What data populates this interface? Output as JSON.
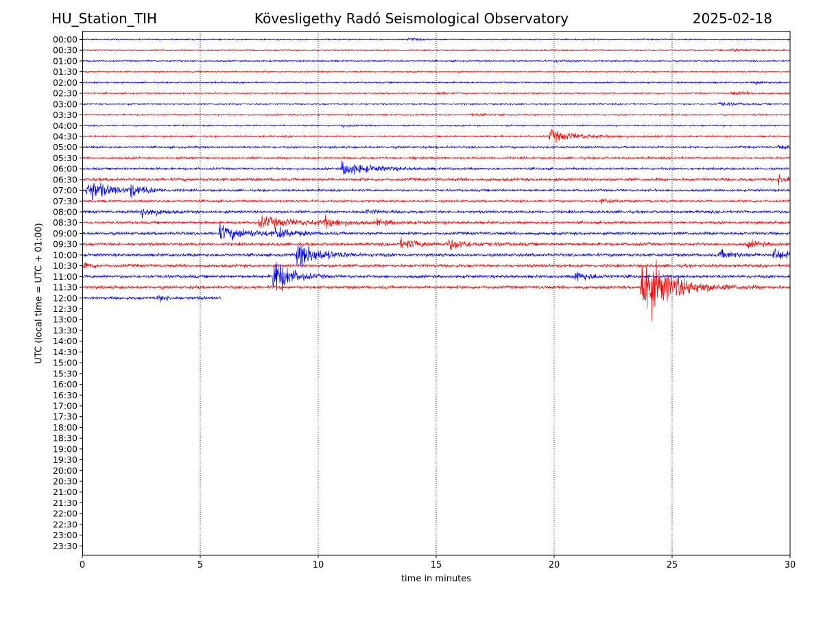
{
  "header": {
    "station": "HU_Station_TIH",
    "title": "Kövesligethy Radó Seismological Observatory",
    "date": "2025-02-18"
  },
  "chart_data": {
    "type": "line",
    "title": "Kövesligethy Radó Seismological Observatory",
    "xlabel": "time in minutes",
    "ylabel": "UTC (local time = UTC + 01:00)",
    "xlim": [
      0,
      30
    ],
    "x_ticks": [
      0,
      5,
      10,
      15,
      20,
      25,
      30
    ],
    "grid": "vertical dotted at x ticks",
    "colors": {
      "even_rows": "#0000ff",
      "odd_rows": "#ff0000"
    },
    "rows": [
      "00:00",
      "00:30",
      "01:00",
      "01:30",
      "02:00",
      "02:30",
      "03:00",
      "03:30",
      "04:00",
      "04:30",
      "05:00",
      "05:30",
      "06:00",
      "06:30",
      "07:00",
      "07:30",
      "08:00",
      "08:30",
      "09:00",
      "09:30",
      "10:00",
      "10:30",
      "11:00",
      "11:30",
      "12:00",
      "12:30",
      "13:00",
      "13:30",
      "14:00",
      "14:30",
      "15:00",
      "15:30",
      "16:00",
      "16:30",
      "17:00",
      "17:30",
      "18:00",
      "18:30",
      "19:00",
      "19:30",
      "20:00",
      "20:30",
      "21:00",
      "21:30",
      "22:00",
      "22:30",
      "23:00",
      "23:30"
    ],
    "traces": [
      {
        "row": "00:00",
        "end_minute": 30,
        "noise": 0.8,
        "events": [
          {
            "t": 13.8,
            "amp": 1.5,
            "dur": 0.8
          }
        ]
      },
      {
        "row": "00:30",
        "end_minute": 30,
        "noise": 0.8,
        "events": [
          {
            "t": 27.5,
            "amp": 1.8,
            "dur": 1.5
          }
        ]
      },
      {
        "row": "01:00",
        "end_minute": 30,
        "noise": 1.0,
        "events": [
          {
            "t": 20.0,
            "amp": 1.5,
            "dur": 1.0
          }
        ]
      },
      {
        "row": "01:30",
        "end_minute": 30,
        "noise": 1.0,
        "events": []
      },
      {
        "row": "02:00",
        "end_minute": 30,
        "noise": 1.0,
        "events": [
          {
            "t": 28.5,
            "amp": 1.8,
            "dur": 1.0
          }
        ]
      },
      {
        "row": "02:30",
        "end_minute": 30,
        "noise": 1.0,
        "events": [
          {
            "t": 15.0,
            "amp": 1.5,
            "dur": 0.8
          },
          {
            "t": 27.5,
            "amp": 2.0,
            "dur": 1.5
          }
        ]
      },
      {
        "row": "03:00",
        "end_minute": 30,
        "noise": 1.0,
        "events": [
          {
            "t": 27.0,
            "amp": 3.0,
            "dur": 1.0
          }
        ]
      },
      {
        "row": "03:30",
        "end_minute": 30,
        "noise": 1.0,
        "events": [
          {
            "t": 16.5,
            "amp": 1.8,
            "dur": 0.6
          }
        ]
      },
      {
        "row": "04:00",
        "end_minute": 30,
        "noise": 1.0,
        "events": [
          {
            "t": 11.0,
            "amp": 1.8,
            "dur": 0.6
          }
        ]
      },
      {
        "row": "04:30",
        "end_minute": 30,
        "noise": 1.2,
        "events": [
          {
            "t": 19.8,
            "amp": 8.0,
            "dur": 2.0
          }
        ]
      },
      {
        "row": "05:00",
        "end_minute": 30,
        "noise": 1.5,
        "events": [
          {
            "t": 29.5,
            "amp": 2.5,
            "dur": 0.8
          }
        ]
      },
      {
        "row": "05:30",
        "end_minute": 30,
        "noise": 1.5,
        "events": [
          {
            "t": 14.0,
            "amp": 2.0,
            "dur": 0.6
          }
        ]
      },
      {
        "row": "06:00",
        "end_minute": 30,
        "noise": 1.5,
        "events": [
          {
            "t": 11.0,
            "amp": 9.0,
            "dur": 2.0
          }
        ]
      },
      {
        "row": "06:30",
        "end_minute": 30,
        "noise": 2.0,
        "events": [
          {
            "t": 29.5,
            "amp": 6.0,
            "dur": 1.0
          }
        ]
      },
      {
        "row": "07:00",
        "end_minute": 30,
        "noise": 1.5,
        "events": [
          {
            "t": 0.2,
            "amp": 16.0,
            "dur": 1.5
          },
          {
            "t": 2.0,
            "amp": 8.0,
            "dur": 1.0
          }
        ]
      },
      {
        "row": "07:30",
        "end_minute": 30,
        "noise": 1.5,
        "events": [
          {
            "t": 22.0,
            "amp": 2.5,
            "dur": 0.8
          }
        ]
      },
      {
        "row": "08:00",
        "end_minute": 30,
        "noise": 1.8,
        "events": [
          {
            "t": 2.5,
            "amp": 8.0,
            "dur": 1.0
          },
          {
            "t": 12.0,
            "amp": 3.0,
            "dur": 1.0
          }
        ]
      },
      {
        "row": "08:30",
        "end_minute": 30,
        "noise": 1.8,
        "events": [
          {
            "t": 7.5,
            "amp": 7.0,
            "dur": 3.0
          },
          {
            "t": 10.2,
            "amp": 7.0,
            "dur": 1.0
          },
          {
            "t": 12.5,
            "amp": 3.5,
            "dur": 1.0
          }
        ]
      },
      {
        "row": "09:00",
        "end_minute": 30,
        "noise": 2.0,
        "events": [
          {
            "t": 5.8,
            "amp": 10.0,
            "dur": 2.0
          },
          {
            "t": 8.2,
            "amp": 7.0,
            "dur": 1.0
          }
        ]
      },
      {
        "row": "09:30",
        "end_minute": 30,
        "noise": 2.0,
        "events": [
          {
            "t": 13.5,
            "amp": 6.0,
            "dur": 1.5
          },
          {
            "t": 15.5,
            "amp": 6.0,
            "dur": 1.5
          },
          {
            "t": 28.2,
            "amp": 5.0,
            "dur": 0.8
          }
        ]
      },
      {
        "row": "10:00",
        "end_minute": 30,
        "noise": 2.0,
        "events": [
          {
            "t": 9.1,
            "amp": 18.0,
            "dur": 1.5
          },
          {
            "t": 27.0,
            "amp": 6.0,
            "dur": 1.0
          },
          {
            "t": 29.3,
            "amp": 10.0,
            "dur": 0.7
          }
        ]
      },
      {
        "row": "10:30",
        "end_minute": 30,
        "noise": 2.0,
        "events": [
          {
            "t": 0.1,
            "amp": 5.0,
            "dur": 0.6
          }
        ]
      },
      {
        "row": "11:00",
        "end_minute": 30,
        "noise": 2.0,
        "events": [
          {
            "t": 8.1,
            "amp": 30.0,
            "dur": 1.0
          },
          {
            "t": 20.9,
            "amp": 7.0,
            "dur": 1.0
          }
        ]
      },
      {
        "row": "11:30",
        "end_minute": 30,
        "noise": 2.0,
        "events": [
          {
            "t": 23.7,
            "amp": 45.0,
            "dur": 2.0
          }
        ]
      },
      {
        "row": "12:00",
        "end_minute": 5.9,
        "noise": 2.0,
        "events": [
          {
            "t": 3.2,
            "amp": 3.0,
            "dur": 1.0
          }
        ]
      }
    ]
  }
}
